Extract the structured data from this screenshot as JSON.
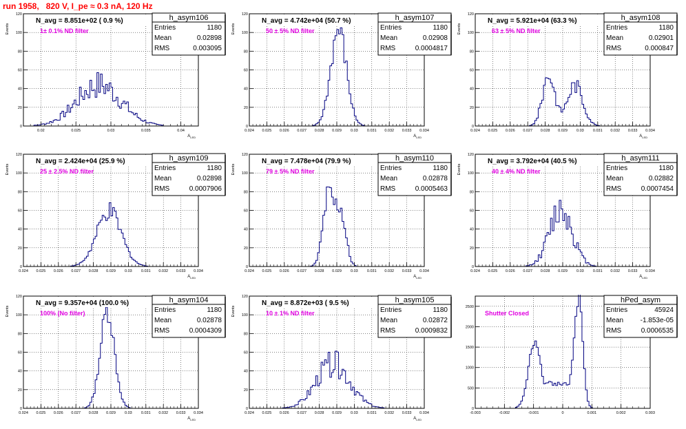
{
  "page": {
    "title": "run 1958,   820 V, I_pe ≈ 0.3 nA, 120 Hz"
  },
  "chart_data": [
    {
      "type": "bar",
      "name": "h_asym106",
      "navg": "N_avg = 8.851e+02 ( 0.9 %)",
      "note": "1± 0.1% ND filter",
      "stats": [
        [
          "Entries",
          "1180"
        ],
        [
          "Mean",
          "0.02898"
        ],
        [
          "RMS",
          "0.003095"
        ]
      ],
      "xlim": [
        0.0175,
        0.0425
      ],
      "ylim": [
        0,
        120
      ],
      "xticks": [
        0.02,
        0.025,
        0.03,
        0.035,
        0.04
      ],
      "xtick_labels": [
        "0.02",
        "0.025",
        "0.03",
        "0.035",
        "0.04"
      ],
      "yticks": [
        0,
        20,
        40,
        60,
        80,
        100,
        120
      ],
      "xlabel": "A_{LED}",
      "ylabel": "Events",
      "peaks": [
        [
          0.0283,
          0.0032,
          44
        ]
      ],
      "noise": 0.35
    },
    {
      "type": "bar",
      "name": "h_asym107",
      "navg": "N_avg = 4.742e+04 (50.7 %)",
      "note": "50 ± 5% ND filter",
      "stats": [
        [
          "Entries",
          "1180"
        ],
        [
          "Mean",
          "0.02908"
        ],
        [
          "RMS",
          "0.0004817"
        ]
      ],
      "xlim": [
        0.024,
        0.034
      ],
      "ylim": [
        0,
        120
      ],
      "xticks": [
        0.024,
        0.025,
        0.026,
        0.027,
        0.028,
        0.029,
        0.03,
        0.031,
        0.032,
        0.033,
        0.034
      ],
      "xtick_labels": [
        "0.024",
        "0.025",
        "0.026",
        "0.027",
        "0.028",
        "0.029",
        "0.03",
        "0.031",
        "0.032",
        "0.033",
        "0.034"
      ],
      "yticks": [
        0,
        20,
        40,
        60,
        80,
        100,
        120
      ],
      "xlabel": "A_{LED}",
      "ylabel": "Events",
      "peaks": [
        [
          0.0291,
          0.00045,
          102
        ]
      ],
      "noise": 0.15
    },
    {
      "type": "bar",
      "name": "h_asym108",
      "navg": "N_avg = 5.921e+04 (63.3 %)",
      "note": "63 ± 5% ND filter",
      "stats": [
        [
          "Entries",
          "1180"
        ],
        [
          "Mean",
          "0.02901"
        ],
        [
          "RMS",
          "0.000847"
        ]
      ],
      "xlim": [
        0.024,
        0.034
      ],
      "ylim": [
        0,
        120
      ],
      "xticks": [
        0.024,
        0.025,
        0.026,
        0.027,
        0.028,
        0.029,
        0.03,
        0.031,
        0.032,
        0.033,
        0.034
      ],
      "xtick_labels": [
        "0.024",
        "0.025",
        "0.026",
        "0.027",
        "0.028",
        "0.029",
        "0.03",
        "0.031",
        "0.032",
        "0.033",
        "0.034"
      ],
      "yticks": [
        0,
        20,
        40,
        60,
        80,
        100,
        120
      ],
      "xlabel": "A_{LED}",
      "ylabel": "Events",
      "peaks": [
        [
          0.0282,
          0.00035,
          55
        ],
        [
          0.0297,
          0.00045,
          44
        ]
      ],
      "noise": 0.2
    },
    {
      "type": "bar",
      "name": "h_asym109",
      "navg": "N_avg = 2.424e+04 (25.9 %)",
      "note": "25 ± 2.5% ND filter",
      "stats": [
        [
          "Entries",
          "1180"
        ],
        [
          "Mean",
          "0.02898"
        ],
        [
          "RMS",
          "0.0007906"
        ]
      ],
      "xlim": [
        0.024,
        0.034
      ],
      "ylim": [
        0,
        120
      ],
      "xticks": [
        0.024,
        0.025,
        0.026,
        0.027,
        0.028,
        0.029,
        0.03,
        0.031,
        0.032,
        0.033,
        0.034
      ],
      "xtick_labels": [
        "0.024",
        "0.025",
        "0.026",
        "0.027",
        "0.028",
        "0.029",
        "0.03",
        "0.031",
        "0.032",
        "0.033",
        "0.034"
      ],
      "yticks": [
        0,
        20,
        40,
        60,
        80,
        100,
        120
      ],
      "xlabel": "A_{LED}",
      "ylabel": "Events",
      "peaks": [
        [
          0.0289,
          0.0007,
          58
        ]
      ],
      "noise": 0.18
    },
    {
      "type": "bar",
      "name": "h_asym110",
      "navg": "N_avg = 7.478e+04 (79.9 %)",
      "note": "79 ± 5% ND filter",
      "stats": [
        [
          "Entries",
          "1180"
        ],
        [
          "Mean",
          "0.02878"
        ],
        [
          "RMS",
          "0.0005463"
        ]
      ],
      "xlim": [
        0.024,
        0.034
      ],
      "ylim": [
        0,
        120
      ],
      "xticks": [
        0.024,
        0.025,
        0.026,
        0.027,
        0.028,
        0.029,
        0.03,
        0.031,
        0.032,
        0.033,
        0.034
      ],
      "xtick_labels": [
        "0.024",
        "0.025",
        "0.026",
        "0.027",
        "0.028",
        "0.029",
        "0.03",
        "0.031",
        "0.032",
        "0.033",
        "0.034"
      ],
      "yticks": [
        0,
        20,
        40,
        60,
        80,
        100,
        120
      ],
      "xlabel": "A_{LED}",
      "ylabel": "Events",
      "peaks": [
        [
          0.0285,
          0.0003,
          72
        ],
        [
          0.0292,
          0.0003,
          60
        ]
      ],
      "noise": 0.2
    },
    {
      "type": "bar",
      "name": "h_asym111",
      "navg": "N_avg = 3.792e+04 (40.5 %)",
      "note": "40 ± 4% ND filter",
      "stats": [
        [
          "Entries",
          "1180"
        ],
        [
          "Mean",
          "0.02882"
        ],
        [
          "RMS",
          "0.0007454"
        ]
      ],
      "xlim": [
        0.024,
        0.034
      ],
      "ylim": [
        0,
        120
      ],
      "xticks": [
        0.024,
        0.025,
        0.026,
        0.027,
        0.028,
        0.029,
        0.03,
        0.031,
        0.032,
        0.033,
        0.034
      ],
      "xtick_labels": [
        "0.024",
        "0.025",
        "0.026",
        "0.027",
        "0.028",
        "0.029",
        "0.03",
        "0.031",
        "0.032",
        "0.033",
        "0.034"
      ],
      "yticks": [
        0,
        20,
        40,
        60,
        80,
        100,
        120
      ],
      "xlabel": "A_{LED}",
      "ylabel": "Events",
      "peaks": [
        [
          0.0289,
          0.00065,
          62
        ]
      ],
      "noise": 0.3
    },
    {
      "type": "bar",
      "name": "h_asym104",
      "navg": "N_avg = 9.357e+04 (100.0 %)",
      "note": "100% (No filter)",
      "stats": [
        [
          "Entries",
          "1180"
        ],
        [
          "Mean",
          "0.02878"
        ],
        [
          "RMS",
          "0.0004309"
        ]
      ],
      "xlim": [
        0.024,
        0.034
      ],
      "ylim": [
        0,
        120
      ],
      "xticks": [
        0.024,
        0.025,
        0.026,
        0.027,
        0.028,
        0.029,
        0.03,
        0.031,
        0.032,
        0.033,
        0.034
      ],
      "xtick_labels": [
        "0.024",
        "0.025",
        "0.026",
        "0.027",
        "0.028",
        "0.029",
        "0.03",
        "0.031",
        "0.032",
        "0.033",
        "0.034"
      ],
      "yticks": [
        0,
        20,
        40,
        60,
        80,
        100,
        120
      ],
      "xlabel": "A_{LED}",
      "ylabel": "Events",
      "peaks": [
        [
          0.0288,
          0.0004,
          105
        ]
      ],
      "noise": 0.12
    },
    {
      "type": "bar",
      "name": "h_asym105",
      "navg": "N_avg = 8.872e+03 ( 9.5 %)",
      "note": "10 ± 1% ND filter",
      "stats": [
        [
          "Entries",
          "1180"
        ],
        [
          "Mean",
          "0.02872"
        ],
        [
          "RMS",
          "0.0009832"
        ]
      ],
      "xlim": [
        0.024,
        0.034
      ],
      "ylim": [
        0,
        120
      ],
      "xticks": [
        0.024,
        0.025,
        0.026,
        0.027,
        0.028,
        0.029,
        0.03,
        0.031,
        0.032,
        0.033,
        0.034
      ],
      "xtick_labels": [
        "0.024",
        "0.025",
        "0.026",
        "0.027",
        "0.028",
        "0.029",
        "0.03",
        "0.031",
        "0.032",
        "0.033",
        "0.034"
      ],
      "yticks": [
        0,
        20,
        40,
        60,
        80,
        100,
        120
      ],
      "xlabel": "A_{LED}",
      "ylabel": "Events",
      "peaks": [
        [
          0.0288,
          0.00095,
          48
        ]
      ],
      "noise": 0.3
    },
    {
      "type": "bar",
      "name": "hPed_asym",
      "navg": "",
      "note": "Shutter Closed",
      "stats": [
        [
          "Entries",
          "45924"
        ],
        [
          "Mean",
          "-1.853e-05"
        ],
        [
          "RMS",
          "0.0006535"
        ]
      ],
      "xlim": [
        -0.003,
        0.003
      ],
      "ylim": [
        0,
        2750
      ],
      "xticks": [
        -0.003,
        -0.002,
        -0.001,
        0,
        0.001,
        0.002,
        0.003
      ],
      "xtick_labels": [
        "-0.003",
        "-0.002",
        "-0.001",
        "0",
        "0.001",
        "0.002",
        "0.003"
      ],
      "yticks": [
        0,
        500,
        1000,
        1500,
        2000,
        2500
      ],
      "xlabel": "",
      "ylabel": "",
      "peaks": [
        [
          -0.00095,
          0.00022,
          1650
        ],
        [
          0.00045,
          0.00018,
          1250
        ],
        [
          0.00058,
          0.00012,
          1700
        ]
      ],
      "noise": 0.05,
      "baseline": 650,
      "baseline_range": [
        -0.0011,
        0.0007
      ]
    }
  ]
}
